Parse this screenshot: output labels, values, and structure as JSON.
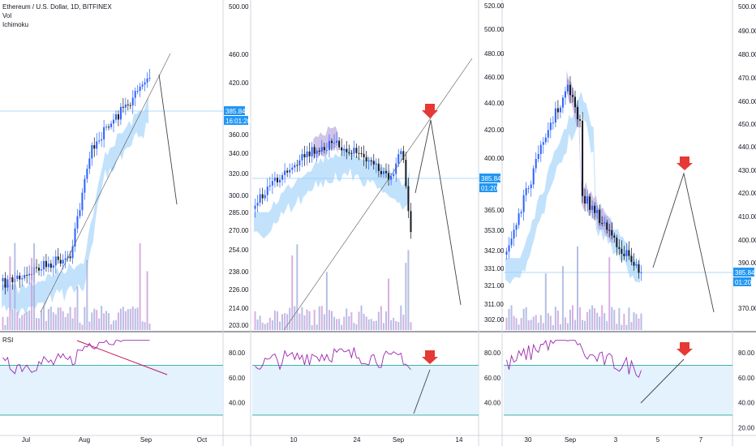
{
  "header": {
    "symbol": "Ethereum / U.S. Dollar, 1D, BITFINEX",
    "indicators": [
      "Vol",
      "Ichimoku"
    ],
    "rsi_label": "RSI"
  },
  "colors": {
    "up": "#2962ff",
    "down": "#131722",
    "cloud_bull": "#90caf9",
    "cloud_bear": "#b39ddb",
    "vol_bull": "#9fa8da",
    "vol_bear": "#ce93d8",
    "rsi_line": "#9c27b0",
    "rsi_band": "#e3f2fd",
    "rsi_band_edge": "#26a69a",
    "price_tag": "#2196f3",
    "arrow_red": "#e53935",
    "trend_red": "#c2185b"
  },
  "chart_data": [
    {
      "type": "candlestick",
      "panel": "left",
      "y_ticks": [
        "500.00",
        "460.00",
        "420.00",
        "385.84",
        "360.00",
        "340.00",
        "320.00",
        "300.00",
        "285.00",
        "270.00",
        "254.00",
        "238.00",
        "226.00",
        "214.00",
        "203.00"
      ],
      "y_scale": "log",
      "ylim": [
        200,
        520
      ],
      "x_ticks": [
        "Jul",
        "Aug",
        "Sep",
        "Oct"
      ],
      "last_price": "385.84",
      "countdown": "16:01:20",
      "rsi_ticks": [
        "80.00",
        "60.00",
        "40.00"
      ],
      "rsi_band": [
        70,
        30
      ],
      "trend": "rising into September, projected drop"
    },
    {
      "type": "candlestick",
      "panel": "middle",
      "y_ticks": [
        "520.00",
        "500.00",
        "480.00",
        "460.00",
        "440.00",
        "420.00",
        "400.00",
        "385.84",
        "365.00",
        "353.00",
        "342.00",
        "331.00",
        "321.00",
        "311.00",
        "302.00"
      ],
      "y_scale": "log",
      "ylim": [
        298,
        525
      ],
      "x_ticks": [
        "10",
        "24",
        "Sep",
        "14"
      ],
      "last_price": "385.84",
      "countdown": "01:20",
      "rsi_ticks": [
        "80.00",
        "60.00",
        "40.00"
      ],
      "rsi_band": [
        70,
        30
      ],
      "trend": "range then projected bounce and drop"
    },
    {
      "type": "candlestick",
      "panel": "right",
      "y_ticks": [
        "500.00",
        "490.00",
        "480.00",
        "470.00",
        "460.00",
        "450.00",
        "440.00",
        "430.00",
        "420.00",
        "410.00",
        "400.00",
        "390.00",
        "385.84",
        "370.00"
      ],
      "y_scale": "linear",
      "ylim": [
        365,
        502
      ],
      "x_ticks": [
        "30",
        "Sep",
        "3",
        "5",
        "7"
      ],
      "last_price": "385.84",
      "countdown": "01:20",
      "rsi_ticks": [
        "80.00",
        "60.00",
        "40.00",
        "20.00"
      ],
      "rsi_band": [
        70,
        30
      ],
      "trend": "peak then selloff, projected bounce and drop"
    }
  ]
}
